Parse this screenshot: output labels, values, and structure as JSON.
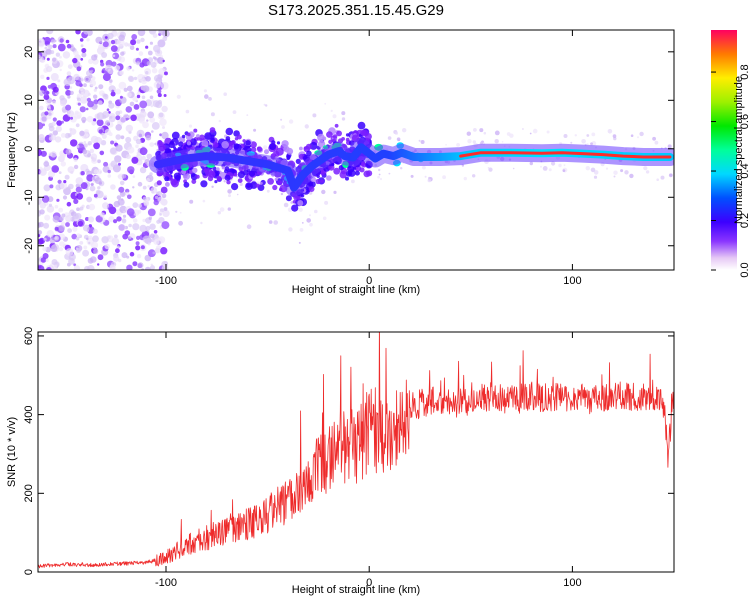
{
  "title": "S173.2025.351.15.45.G29",
  "chart_data": [
    {
      "type": "heatmap",
      "name": "spectrogram",
      "xlabel": "Height of straight line (km)",
      "ylabel": "Frequency (Hz)",
      "xlim": [
        -163,
        150
      ],
      "ylim": [
        -25,
        24.5
      ],
      "xticks": [
        -100,
        0,
        100
      ],
      "yticks": [
        -20,
        -10,
        0,
        10,
        20
      ],
      "colorbar": {
        "label": "Normalized spectral amplitude",
        "range": [
          0,
          0.97
        ],
        "ticks": [
          0,
          0.2,
          0.4,
          0.6,
          0.8
        ]
      },
      "ridge": [
        [
          -104,
          -3.2
        ],
        [
          -90,
          -2.0
        ],
        [
          -80,
          -1.5
        ],
        [
          -70,
          -1.8
        ],
        [
          -60,
          -2.5
        ],
        [
          -50,
          -3.2
        ],
        [
          -40,
          -4.5
        ],
        [
          -37,
          -8.0
        ],
        [
          -33,
          -5.5
        ],
        [
          -28,
          -3.5
        ],
        [
          -20,
          -1.2
        ],
        [
          -15,
          -0.5
        ],
        [
          -12,
          -1.5
        ],
        [
          -8,
          -1.8
        ],
        [
          -4,
          0.3
        ],
        [
          0,
          -1.0
        ],
        [
          3,
          -2.0
        ],
        [
          7,
          -1.0
        ],
        [
          12,
          -1.5
        ],
        [
          16,
          -0.8
        ],
        [
          22,
          -1.7
        ],
        [
          28,
          -1.7
        ],
        [
          35,
          -1.7
        ],
        [
          45,
          -1.5
        ],
        [
          55,
          -0.8
        ],
        [
          70,
          -0.8
        ],
        [
          85,
          -0.9
        ],
        [
          95,
          -0.8
        ],
        [
          105,
          -1.0
        ],
        [
          115,
          -1.2
        ],
        [
          125,
          -1.5
        ],
        [
          135,
          -1.7
        ],
        [
          148,
          -1.7
        ]
      ]
    },
    {
      "type": "line",
      "name": "snr",
      "xlabel": "Height of straight line (km)",
      "ylabel": "SNR (10 * v/v)",
      "xlim": [
        -163,
        150
      ],
      "ylim": [
        0,
        610
      ],
      "xticks": [
        -100,
        0,
        100
      ],
      "yticks": [
        0,
        200,
        400,
        600
      ],
      "color": "#ee2b2b",
      "series": [
        {
          "name": "SNR",
          "x": [
            -163,
            -150,
            -140,
            -130,
            -120,
            -110,
            -105,
            -100,
            -95,
            -90,
            -85,
            -80,
            -75,
            -70,
            -65,
            -60,
            -55,
            -50,
            -45,
            -40,
            -35,
            -30,
            -25,
            -20,
            -15,
            -10,
            -5,
            0,
            5,
            10,
            15,
            20,
            25,
            30,
            40,
            50,
            60,
            70,
            80,
            90,
            100,
            110,
            120,
            130,
            140,
            145,
            147,
            150
          ],
          "y": [
            15,
            20,
            18,
            20,
            22,
            25,
            30,
            40,
            55,
            70,
            80,
            90,
            100,
            105,
            115,
            125,
            135,
            150,
            170,
            190,
            210,
            250,
            270,
            300,
            320,
            340,
            330,
            370,
            370,
            380,
            400,
            420,
            430,
            440,
            430,
            440,
            450,
            440,
            450,
            445,
            450,
            440,
            455,
            450,
            455,
            420,
            300,
            460
          ]
        }
      ]
    }
  ],
  "colors": {
    "line": "#ee2b2b",
    "frame": "#000000"
  }
}
